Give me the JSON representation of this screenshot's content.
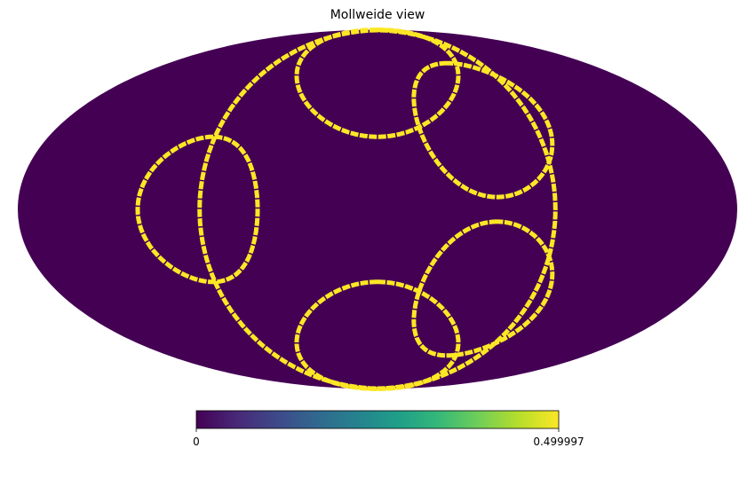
{
  "chart_data": {
    "type": "heatmap",
    "projection": "mollweide",
    "title": "Mollweide view",
    "colormap": "viridis",
    "background_value": 0,
    "value_range": [
      0,
      0.499997
    ],
    "colorbar": {
      "orientation": "horizontal",
      "placement": "bottom",
      "min_label": "0",
      "max_label": "0.499997"
    },
    "colors": {
      "background": "#440154",
      "highlight": "#fde725"
    },
    "rings": [
      {
        "lon": 0,
        "lat": 0,
        "radius_deg": 89,
        "value": 0.499997
      },
      {
        "lon": 90,
        "lat": 0,
        "radius_deg": 30,
        "value": 0.499997
      },
      {
        "lon": 0,
        "lat": 60,
        "radius_deg": 30,
        "value": 0.499997
      },
      {
        "lon": 0,
        "lat": -60,
        "radius_deg": 30,
        "value": 0.499997
      },
      {
        "lon": -60,
        "lat": 35,
        "radius_deg": 30,
        "value": 0.499997
      },
      {
        "lon": -60,
        "lat": -35,
        "radius_deg": 30,
        "value": 0.499997
      }
    ]
  }
}
